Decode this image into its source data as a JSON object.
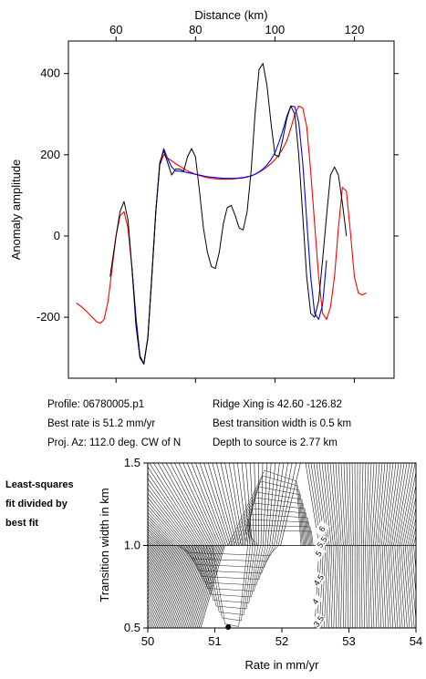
{
  "chart_data": [
    {
      "type": "line",
      "xlabel": "Distance (km)",
      "ylabel": "Anomaly amplitude",
      "xlim": [
        48,
        130
      ],
      "ylim": [
        -350,
        480
      ],
      "x_ticks": [
        60,
        80,
        100,
        120
      ],
      "y_ticks": [
        -200,
        0,
        200,
        400
      ],
      "x_tick_labels": [
        "60",
        "80",
        "100",
        "120"
      ],
      "y_tick_labels": [
        "-200",
        "0",
        "200",
        "400"
      ],
      "grid": false,
      "series": [
        {
          "color": "#000000",
          "x": [
            58.5,
            60,
            61,
            62,
            63,
            64,
            65,
            66,
            67,
            68,
            69,
            70,
            71,
            72,
            73,
            74,
            75,
            76,
            77,
            78,
            79,
            80,
            81,
            82,
            83,
            84,
            85,
            86,
            87,
            88,
            89,
            90,
            91,
            92,
            93,
            94,
            95,
            96,
            97,
            98,
            99,
            100,
            101,
            102,
            103,
            104,
            105,
            106,
            107,
            108,
            109,
            110,
            111,
            112,
            113,
            114,
            115,
            116,
            117,
            118
          ],
          "y": [
            -100,
            0,
            60,
            85,
            40,
            -80,
            -220,
            -300,
            -315,
            -250,
            -100,
            60,
            180,
            210,
            180,
            150,
            165,
            165,
            160,
            195,
            215,
            195,
            110,
            20,
            -40,
            -75,
            -80,
            -40,
            30,
            70,
            75,
            50,
            20,
            15,
            60,
            160,
            300,
            410,
            425,
            370,
            280,
            200,
            195,
            240,
            290,
            320,
            300,
            200,
            50,
            -100,
            -190,
            -200,
            -160,
            -60,
            50,
            150,
            170,
            150,
            80,
            0
          ]
        },
        {
          "color": "#0000ff",
          "x": [
            64,
            65,
            66,
            67,
            68,
            69,
            70,
            71,
            72,
            73,
            74,
            75,
            76,
            77,
            78,
            79,
            80,
            81,
            82,
            83,
            84,
            85,
            86,
            87,
            88,
            89,
            90,
            91,
            92,
            93,
            94,
            95,
            96,
            97,
            98,
            99,
            100,
            101,
            102,
            103,
            104,
            105,
            106,
            107,
            108,
            109,
            110,
            111,
            112,
            113
          ],
          "y": [
            -80,
            -200,
            -295,
            -315,
            -250,
            -100,
            60,
            175,
            215,
            190,
            170,
            160,
            160,
            158,
            156,
            154,
            152,
            150,
            148,
            146,
            145,
            144,
            143,
            142,
            142,
            142,
            142,
            143,
            144,
            146,
            148,
            152,
            158,
            165,
            175,
            188,
            205,
            230,
            260,
            295,
            320,
            318,
            280,
            180,
            40,
            -100,
            -190,
            -205,
            -170,
            -60
          ]
        },
        {
          "color": "#ff0000",
          "x": [
            50,
            51,
            52,
            53,
            54,
            55,
            56,
            57,
            58,
            59,
            60,
            61,
            62,
            63,
            64,
            65,
            66,
            67,
            68,
            69,
            70,
            71,
            72,
            73,
            74,
            75,
            76,
            77,
            78,
            79,
            80,
            81,
            82,
            83,
            84,
            85,
            86,
            87,
            88,
            89,
            90,
            91,
            92,
            93,
            94,
            95,
            96,
            97,
            98,
            99,
            100,
            101,
            102,
            103,
            104,
            105,
            106,
            107,
            108,
            109,
            110,
            111,
            112,
            113,
            114,
            115,
            116,
            117,
            118,
            119,
            120,
            121,
            122,
            123
          ],
          "y": [
            -165,
            -172,
            -180,
            -190,
            -200,
            -210,
            -215,
            -205,
            -160,
            -80,
            0,
            50,
            60,
            20,
            -80,
            -200,
            -295,
            -315,
            -250,
            -100,
            60,
            175,
            200,
            192,
            185,
            178,
            172,
            166,
            160,
            156,
            152,
            149,
            146,
            144,
            142,
            141,
            140,
            140,
            140,
            140,
            141,
            142,
            143,
            145,
            148,
            152,
            157,
            163,
            170,
            178,
            188,
            200,
            215,
            235,
            265,
            300,
            320,
            315,
            270,
            160,
            30,
            -100,
            -190,
            -205,
            -175,
            -100,
            20,
            120,
            110,
            10,
            -100,
            -140,
            -145,
            -140
          ]
        }
      ]
    },
    {
      "type": "heatmap",
      "xlabel": "Rate in mm/yr",
      "ylabel": "Transition width in km",
      "xlim": [
        50,
        54
      ],
      "ylim": [
        0.5,
        1.5
      ],
      "x_ticks": [
        50,
        51,
        52,
        53,
        54
      ],
      "y_ticks": [
        0.5,
        1.0,
        1.5
      ],
      "x_tick_labels": [
        "50",
        "51",
        "52",
        "53",
        "54"
      ],
      "y_tick_labels": [
        "0.5",
        "1.0",
        "1.5"
      ],
      "contour_labels": [
        {
          "text": "6",
          "x": 52.6,
          "y": 1.1
        },
        {
          "text": "5.5",
          "x": 52.6,
          "y": 1.02
        },
        {
          "text": "5",
          "x": 52.55,
          "y": 0.95
        },
        {
          "text": "4.5",
          "x": 52.55,
          "y": 0.79
        },
        {
          "text": "4",
          "x": 52.5,
          "y": 0.66
        },
        {
          "text": "3.5",
          "x": 52.55,
          "y": 0.54
        }
      ],
      "best_fit_point": {
        "x": 51.2,
        "y": 0.5
      }
    }
  ],
  "info": {
    "profile": "Profile: 06780005.p1",
    "best_rate": "Best rate is 51.2 mm/yr",
    "proj_az": "Proj. Az: 112.0 deg. CW of N",
    "ridge_xing": "Ridge Xing is 42.60 -126.82",
    "best_width": "Best transition width is 0.5 km",
    "depth": "Depth to source is   2.77 km"
  },
  "side_note": [
    "Least-squares",
    "fit divided by",
    "best fit"
  ]
}
